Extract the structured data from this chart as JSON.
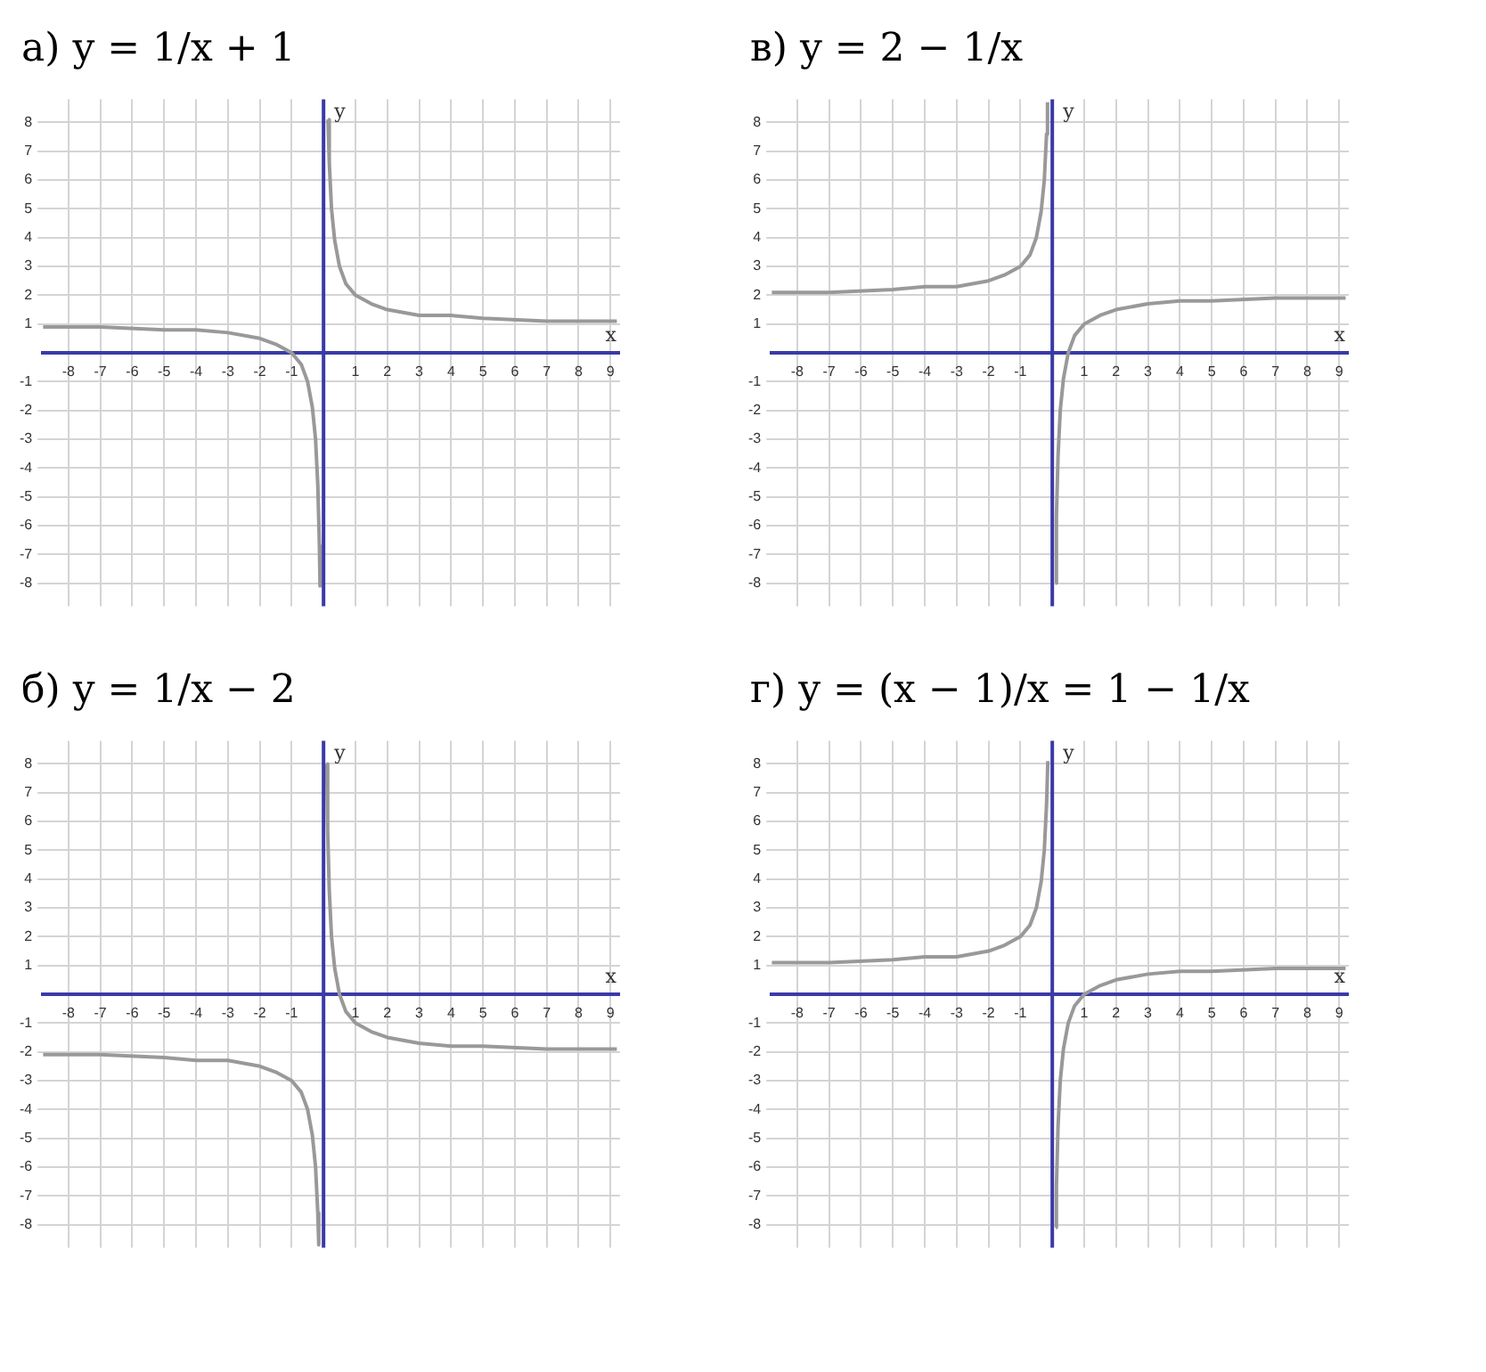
{
  "chart_data": [
    {
      "type": "line",
      "title": "а) y = 1/x + 1",
      "xlabel": "x",
      "ylabel": "y",
      "xlim": [
        -8.8,
        9.3
      ],
      "ylim": [
        -8.8,
        8.8
      ],
      "xticks": [
        -8,
        -7,
        -6,
        -5,
        -4,
        -3,
        -2,
        -1,
        1,
        2,
        3,
        4,
        5,
        6,
        7,
        8,
        9
      ],
      "yticks": [
        -8,
        -7,
        -6,
        -5,
        -4,
        -3,
        -2,
        -1,
        1,
        2,
        3,
        4,
        5,
        6,
        7,
        8
      ],
      "grid": true,
      "ref_lines": [
        {
          "axis": "x",
          "value": 0,
          "color": "#3a3aa8"
        }
      ],
      "series": [
        {
          "color": "#999999",
          "x": [
            -8.8,
            -7,
            -5,
            -4,
            -3,
            -2,
            -1.5,
            -1,
            -0.7,
            -0.5,
            -0.35,
            -0.25,
            -0.18,
            -0.13,
            -0.11
          ],
          "values": [
            0.9,
            0.9,
            0.8,
            0.8,
            0.7,
            0.5,
            0.3,
            0,
            -0.4,
            -1,
            -1.9,
            -3,
            -4.6,
            -6.7,
            -8.1
          ]
        },
        {
          "color": "#999999",
          "x": [
            0.14,
            0.18,
            0.25,
            0.35,
            0.5,
            0.7,
            1,
            1.5,
            2,
            3,
            4,
            5,
            7,
            9.2
          ],
          "values": [
            8.1,
            6.6,
            5,
            3.9,
            3,
            2.4,
            2,
            1.7,
            1.5,
            1.3,
            1.3,
            1.2,
            1.1,
            1.1
          ]
        }
      ]
    },
    {
      "type": "line",
      "title": "в) y = 2 − 1/x",
      "xlabel": "x",
      "ylabel": "y",
      "xlim": [
        -8.8,
        9.3
      ],
      "ylim": [
        -8.8,
        8.8
      ],
      "xticks": [
        -8,
        -7,
        -6,
        -5,
        -4,
        -3,
        -2,
        -1,
        1,
        2,
        3,
        4,
        5,
        6,
        7,
        8,
        9
      ],
      "yticks": [
        -8,
        -7,
        -6,
        -5,
        -4,
        -3,
        -2,
        -1,
        1,
        2,
        3,
        4,
        5,
        6,
        7,
        8
      ],
      "grid": true,
      "ref_lines": [
        {
          "axis": "x",
          "value": 0,
          "color": "#3a3aa8"
        }
      ],
      "series": [
        {
          "color": "#999999",
          "x": [
            -8.8,
            -7,
            -5,
            -4,
            -3,
            -2,
            -1.5,
            -1,
            -0.7,
            -0.5,
            -0.35,
            -0.25,
            -0.18,
            -0.15
          ],
          "values": [
            2.1,
            2.1,
            2.2,
            2.3,
            2.3,
            2.5,
            2.7,
            3,
            3.4,
            4,
            4.9,
            6,
            7.6,
            8.7
          ]
        },
        {
          "color": "#999999",
          "x": [
            0.1,
            0.13,
            0.18,
            0.25,
            0.35,
            0.5,
            0.7,
            1,
            1.5,
            2,
            3,
            4,
            5,
            7,
            9.2
          ],
          "values": [
            -8,
            -5.7,
            -3.6,
            -2,
            -0.9,
            0,
            0.6,
            1,
            1.3,
            1.5,
            1.7,
            1.8,
            1.8,
            1.9,
            1.9
          ]
        }
      ]
    },
    {
      "type": "line",
      "title": "б) y = 1/x − 2",
      "xlabel": "x",
      "ylabel": "y",
      "xlim": [
        -8.8,
        9.3
      ],
      "ylim": [
        -8.8,
        8.8
      ],
      "xticks": [
        -8,
        -7,
        -6,
        -5,
        -4,
        -3,
        -2,
        -1,
        1,
        2,
        3,
        4,
        5,
        6,
        7,
        8,
        9
      ],
      "yticks": [
        -8,
        -7,
        -6,
        -5,
        -4,
        -3,
        -2,
        -1,
        1,
        2,
        3,
        4,
        5,
        6,
        7,
        8
      ],
      "grid": true,
      "ref_lines": [
        {
          "axis": "x",
          "value": 0,
          "color": "#3a3aa8"
        }
      ],
      "series": [
        {
          "color": "#999999",
          "x": [
            -8.8,
            -7,
            -5,
            -4,
            -3,
            -2,
            -1.5,
            -1,
            -0.7,
            -0.5,
            -0.35,
            -0.25,
            -0.18,
            -0.15
          ],
          "values": [
            -2.1,
            -2.1,
            -2.2,
            -2.3,
            -2.3,
            -2.5,
            -2.7,
            -3,
            -3.4,
            -4,
            -4.9,
            -6,
            -7.6,
            -8.7
          ]
        },
        {
          "color": "#999999",
          "x": [
            0.1,
            0.13,
            0.18,
            0.25,
            0.35,
            0.5,
            0.7,
            1,
            1.5,
            2,
            3,
            4,
            5,
            7,
            9.2
          ],
          "values": [
            8,
            5.7,
            3.6,
            2,
            0.9,
            0,
            -0.6,
            -1,
            -1.3,
            -1.5,
            -1.7,
            -1.8,
            -1.8,
            -1.9,
            -1.9
          ]
        }
      ]
    },
    {
      "type": "line",
      "title": "г) y = (x − 1)/x = 1 − 1/x",
      "xlabel": "x",
      "ylabel": "y",
      "xlim": [
        -8.8,
        9.3
      ],
      "ylim": [
        -8.8,
        8.8
      ],
      "xticks": [
        -8,
        -7,
        -6,
        -5,
        -4,
        -3,
        -2,
        -1,
        1,
        2,
        3,
        4,
        5,
        6,
        7,
        8,
        9
      ],
      "yticks": [
        -8,
        -7,
        -6,
        -5,
        -4,
        -3,
        -2,
        -1,
        1,
        2,
        3,
        4,
        5,
        6,
        7,
        8
      ],
      "grid": true,
      "ref_lines": [
        {
          "axis": "x",
          "value": 0,
          "color": "#3a3aa8"
        }
      ],
      "series": [
        {
          "color": "#999999",
          "x": [
            -8.8,
            -7,
            -5,
            -4,
            -3,
            -2,
            -1.5,
            -1,
            -0.7,
            -0.5,
            -0.35,
            -0.25,
            -0.18,
            -0.14
          ],
          "values": [
            1.1,
            1.1,
            1.2,
            1.3,
            1.3,
            1.5,
            1.7,
            2,
            2.4,
            3,
            3.9,
            5,
            6.6,
            8.1
          ]
        },
        {
          "color": "#999999",
          "x": [
            0.11,
            0.13,
            0.18,
            0.25,
            0.35,
            0.5,
            0.7,
            1,
            1.5,
            2,
            3,
            4,
            5,
            7,
            9.2
          ],
          "values": [
            -8.1,
            -6.7,
            -4.6,
            -3,
            -1.9,
            -1,
            -0.4,
            0,
            0.3,
            0.5,
            0.7,
            0.8,
            0.8,
            0.9,
            0.9
          ]
        }
      ]
    }
  ]
}
